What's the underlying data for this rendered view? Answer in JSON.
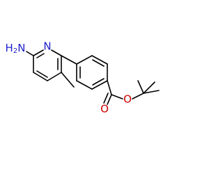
{
  "amine": {
    "prefix": "H",
    "subscript": "2",
    "atom": "N"
  },
  "ring_nitrogen": "N",
  "carbonyl_oxygen": "O",
  "ester_oxygen": "O"
}
